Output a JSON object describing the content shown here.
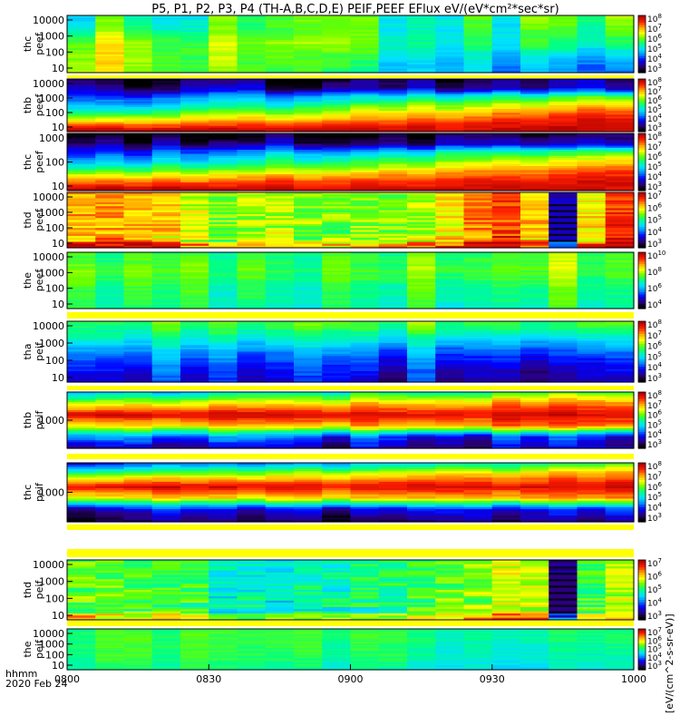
{
  "title": "P5, P1, P2, P3, P4 (TH-A,B,C,D,E) PEIF,PEEF EFlux eV/(eV*cm²*sec*sr)",
  "x_axis": {
    "ticks": [
      "0800",
      "0830",
      "0900",
      "0930",
      "1000"
    ],
    "label_line1": "hhmm",
    "label_line2": "2020 Feb 24"
  },
  "colorbar_label": "[eV/(cm^2-s-sr-eV)]",
  "chart_data": {
    "type": "heatmap",
    "x_range_hours": [
      8.0,
      10.0
    ],
    "colormap": [
      "#000000",
      "#2b0080",
      "#0000ff",
      "#0088ff",
      "#00e0ff",
      "#00ff88",
      "#66ff00",
      "#ffff00",
      "#ffa000",
      "#ff2000",
      "#b40000"
    ],
    "panels": [
      {
        "probe": "thc",
        "quantity": "peef",
        "yticks": [
          "10000",
          "1000",
          "100",
          "10"
        ],
        "cbar_ticks": [
          "10^8",
          "10^7",
          "10^6",
          "10^5",
          "10^4",
          "10^3"
        ],
        "profile": [
          [
            0.5,
            0.55
          ],
          [
            0.55,
            0.5
          ],
          [
            0.68,
            0.45
          ],
          [
            0.7,
            0.3
          ],
          [
            0.7,
            0.25
          ]
        ],
        "profile_var": [
          0.7,
          0.6,
          0.5,
          0.45,
          0.4
        ]
      },
      {
        "probe": "thb",
        "quantity": "peef",
        "yticks": [
          "10000",
          "1000",
          "100",
          "10"
        ],
        "cbar_ticks": [
          "10^8",
          "10^7",
          "10^6",
          "10^5",
          "10^4",
          "10^3"
        ],
        "profile": [
          [
            0.0,
            0.08
          ],
          [
            0.08,
            0.12
          ],
          [
            0.22,
            0.55
          ],
          [
            0.32,
            0.75
          ],
          [
            0.5,
            0.88
          ],
          [
            0.75,
            0.95
          ],
          [
            1.0,
            0.97
          ]
        ],
        "profile_var": [
          0.5,
          0.5,
          0.3,
          0.25,
          0.2,
          0.15,
          0.1
        ]
      },
      {
        "probe": "thc",
        "quantity": "peef",
        "yticks": [
          "1000",
          "100",
          "10"
        ],
        "cbar_ticks": [
          "10^8",
          "10^7",
          "10^6",
          "10^5",
          "10^4",
          "10^3"
        ],
        "profile": [
          [
            0.0,
            0.02
          ],
          [
            0.1,
            0.1
          ],
          [
            0.22,
            0.55
          ],
          [
            0.35,
            0.72
          ],
          [
            0.55,
            0.86
          ],
          [
            0.8,
            0.93
          ],
          [
            1.0,
            0.95
          ]
        ],
        "profile_var": [
          0.5,
          0.5,
          0.3,
          0.25,
          0.2,
          0.15,
          0.1
        ]
      },
      {
        "probe": "thd",
        "quantity": "peef",
        "yticks": [
          "10000",
          "1000",
          "100",
          "10"
        ],
        "cbar_ticks": [
          "10^7",
          "10^6",
          "10^5",
          "10^4",
          "10^3"
        ],
        "columns": [
          0.78,
          0.8,
          0.78,
          0.74,
          0.66,
          0.6,
          0.64,
          0.64,
          0.62,
          0.6,
          0.62,
          0.6,
          0.64,
          0.73,
          0.84,
          0.88,
          0.75,
          0.15,
          0.72,
          0.88
        ],
        "profile_var": [
          0.25,
          0.25,
          0.2,
          0.35
        ]
      },
      {
        "probe": "the",
        "quantity": "peef",
        "yticks": [
          "10000",
          "1000",
          "100",
          "10"
        ],
        "cbar_ticks": [
          "10^10",
          "10^8",
          "10^6",
          "10^4"
        ],
        "profile": [
          [
            0.5,
            0.6
          ],
          [
            0.55,
            0.62
          ],
          [
            0.5,
            0.55
          ],
          [
            0.48,
            0.5
          ]
        ],
        "profile_var": [
          0.4,
          0.4,
          0.4,
          0.4
        ]
      },
      {
        "probe": "tha",
        "quantity": "peif",
        "yticks": [
          "10000",
          "1000",
          "100",
          "10"
        ],
        "cbar_ticks": [
          "10^8",
          "10^7",
          "10^6",
          "10^5",
          "10^4",
          "10^3"
        ],
        "profile": [
          [
            0.55,
            0.6
          ],
          [
            0.48,
            0.45
          ],
          [
            0.35,
            0.28
          ],
          [
            0.25,
            0.2
          ],
          [
            0.2,
            0.15
          ]
        ],
        "profile_var": [
          0.4,
          0.35,
          0.4,
          0.5,
          0.5
        ]
      },
      {
        "probe": "thb",
        "quantity": "peif",
        "yticks": [
          "1000"
        ],
        "cbar_ticks": [
          "10^8",
          "10^7",
          "10^6",
          "10^5",
          "10^4",
          "10^3"
        ],
        "profile": [
          [
            0.35,
            0.6
          ],
          [
            0.65,
            0.85
          ],
          [
            0.95,
            0.95
          ],
          [
            0.7,
            0.85
          ],
          [
            0.3,
            0.2
          ],
          [
            0.1,
            0.15
          ]
        ],
        "profile_var": [
          0.3,
          0.25,
          0.15,
          0.25,
          0.5,
          0.4
        ]
      },
      {
        "probe": "thc",
        "quantity": "peif",
        "yticks": [
          "1000"
        ],
        "cbar_ticks": [
          "10^8",
          "10^7",
          "10^6",
          "10^5",
          "10^4",
          "10^3"
        ],
        "profile": [
          [
            0.2,
            0.55
          ],
          [
            0.6,
            0.82
          ],
          [
            0.95,
            0.95
          ],
          [
            0.7,
            0.8
          ],
          [
            0.15,
            0.2
          ],
          [
            0.05,
            0.1
          ]
        ],
        "profile_var": [
          0.3,
          0.25,
          0.15,
          0.25,
          0.5,
          0.4
        ]
      },
      {
        "probe": "thd",
        "quantity": "peif",
        "yticks": [
          "10000",
          "1000",
          "100",
          "10"
        ],
        "cbar_ticks": [
          "10^7",
          "10^6",
          "10^5",
          "10^4",
          "10^3"
        ],
        "columns": [
          0.6,
          0.58,
          0.56,
          0.55,
          0.55,
          0.45,
          0.44,
          0.44,
          0.46,
          0.46,
          0.5,
          0.52,
          0.55,
          0.58,
          0.62,
          0.68,
          0.66,
          0.1,
          0.55,
          0.65
        ],
        "profile_var": [
          0.2,
          0.2,
          0.2,
          0.25
        ]
      },
      {
        "probe": "the",
        "quantity": "peif",
        "yticks": [
          "10000",
          "1000",
          "100",
          "10"
        ],
        "cbar_ticks": [
          "10^7",
          "10^6",
          "10^5",
          "10^4",
          "10^3"
        ],
        "profile": [
          [
            0.55,
            0.5
          ],
          [
            0.55,
            0.48
          ],
          [
            0.55,
            0.45
          ],
          [
            0.5,
            0.42
          ]
        ],
        "profile_var": [
          0.3,
          0.3,
          0.3,
          0.3
        ]
      }
    ]
  }
}
